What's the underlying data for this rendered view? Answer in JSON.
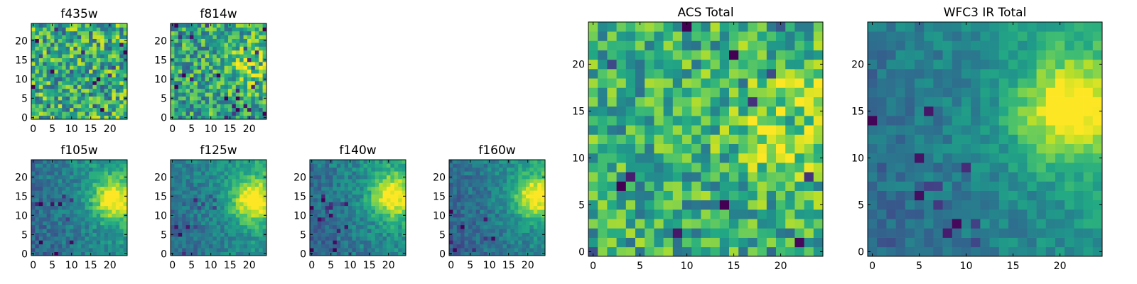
{
  "figure": {
    "colormap": "viridis",
    "axes_frame_color": "#000000",
    "background": "#ffffff"
  },
  "chart_data": [
    {
      "type": "heatmap",
      "title": "f435w",
      "grid_size": [
        25,
        25
      ],
      "xlim": [
        -0.5,
        24.5
      ],
      "ylim": [
        -0.5,
        24.5
      ],
      "x_ticks": [
        0,
        5,
        10,
        15,
        20
      ],
      "y_ticks": [
        0,
        5,
        10,
        15,
        20
      ],
      "pattern": "noise",
      "center": [
        21,
        14
      ],
      "base": 0.62,
      "noise": 0.32,
      "seed": 11
    },
    {
      "type": "heatmap",
      "title": "f814w",
      "grid_size": [
        25,
        25
      ],
      "xlim": [
        -0.5,
        24.5
      ],
      "ylim": [
        -0.5,
        24.5
      ],
      "x_ticks": [
        0,
        5,
        10,
        15,
        20
      ],
      "y_ticks": [
        0,
        5,
        10,
        15,
        20
      ],
      "pattern": "noise-with-source",
      "center": [
        21,
        14
      ],
      "base": 0.58,
      "noise": 0.28,
      "seed": 23
    },
    {
      "type": "heatmap",
      "title": "f105w",
      "grid_size": [
        25,
        25
      ],
      "xlim": [
        -0.5,
        24.5
      ],
      "ylim": [
        -0.5,
        24.5
      ],
      "x_ticks": [
        0,
        5,
        10,
        15,
        20
      ],
      "y_ticks": [
        0,
        5,
        10,
        15,
        20
      ],
      "pattern": "source-gradient",
      "center": [
        21,
        14
      ],
      "base": 0.3,
      "noise": 0.12,
      "seed": 37
    },
    {
      "type": "heatmap",
      "title": "f125w",
      "grid_size": [
        25,
        25
      ],
      "xlim": [
        -0.5,
        24.5
      ],
      "ylim": [
        -0.5,
        24.5
      ],
      "x_ticks": [
        0,
        5,
        10,
        15,
        20
      ],
      "y_ticks": [
        0,
        5,
        10,
        15,
        20
      ],
      "pattern": "source-gradient",
      "center": [
        21,
        14
      ],
      "base": 0.32,
      "noise": 0.11,
      "seed": 41
    },
    {
      "type": "heatmap",
      "title": "f140w",
      "grid_size": [
        25,
        25
      ],
      "xlim": [
        -0.5,
        24.5
      ],
      "ylim": [
        -0.5,
        24.5
      ],
      "x_ticks": [
        0,
        5,
        10,
        15,
        20
      ],
      "y_ticks": [
        0,
        5,
        10,
        15,
        20
      ],
      "pattern": "source-gradient",
      "center": [
        21,
        15
      ],
      "base": 0.3,
      "noise": 0.12,
      "seed": 53
    },
    {
      "type": "heatmap",
      "title": "f160w",
      "grid_size": [
        25,
        25
      ],
      "xlim": [
        -0.5,
        24.5
      ],
      "ylim": [
        -0.5,
        24.5
      ],
      "x_ticks": [
        0,
        5,
        10,
        15,
        20
      ],
      "y_ticks": [
        0,
        5,
        10,
        15,
        20
      ],
      "pattern": "source-gradient",
      "center": [
        22,
        15
      ],
      "base": 0.28,
      "noise": 0.11,
      "seed": 67
    },
    {
      "type": "heatmap",
      "title": "ACS Total",
      "grid_size": [
        25,
        25
      ],
      "xlim": [
        -0.5,
        24.5
      ],
      "ylim": [
        -0.5,
        24.5
      ],
      "x_ticks": [
        0,
        5,
        10,
        15,
        20
      ],
      "y_ticks": [
        0,
        5,
        10,
        15,
        20
      ],
      "pattern": "noise-with-source",
      "center": [
        21,
        14
      ],
      "base": 0.62,
      "noise": 0.26,
      "seed": 79
    },
    {
      "type": "heatmap",
      "title": "WFC3 IR Total",
      "grid_size": [
        25,
        25
      ],
      "xlim": [
        -0.5,
        24.5
      ],
      "ylim": [
        -0.5,
        24.5
      ],
      "x_ticks": [
        0,
        5,
        10,
        15,
        20
      ],
      "y_ticks": [
        0,
        5,
        10,
        15,
        20
      ],
      "pattern": "source-gradient",
      "center": [
        21,
        15
      ],
      "base": 0.32,
      "noise": 0.1,
      "seed": 97
    }
  ]
}
